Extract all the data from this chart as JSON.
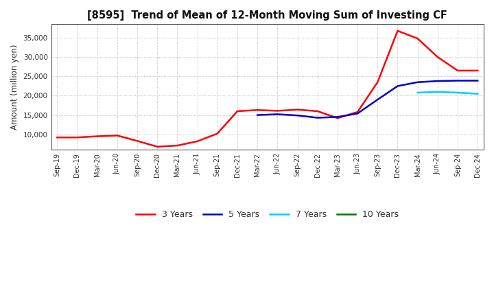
{
  "title": "[8595]  Trend of Mean of 12-Month Moving Sum of Investing CF",
  "ylabel": "Amount (million yen)",
  "background_color": "#ffffff",
  "grid_color": "#888888",
  "ylim": [
    6000,
    38500
  ],
  "yticks": [
    10000,
    15000,
    20000,
    25000,
    30000,
    35000
  ],
  "x_labels": [
    "Sep-19",
    "Dec-19",
    "Mar-20",
    "Jun-20",
    "Sep-20",
    "Dec-20",
    "Mar-21",
    "Jun-21",
    "Sep-21",
    "Dec-21",
    "Mar-22",
    "Jun-22",
    "Sep-22",
    "Dec-22",
    "Mar-23",
    "Jun-23",
    "Sep-23",
    "Dec-23",
    "Mar-24",
    "Jun-24",
    "Sep-24",
    "Dec-24"
  ],
  "series": {
    "3 Years": {
      "color": "#ff0000",
      "data_x": [
        0,
        1,
        2,
        3,
        4,
        5,
        6,
        7,
        8,
        9,
        10,
        11,
        12,
        13,
        14,
        15,
        16,
        17,
        18,
        19,
        20,
        21
      ],
      "data_y": [
        9200,
        9200,
        9500,
        9700,
        8300,
        6800,
        7100,
        8200,
        10200,
        16000,
        16300,
        16100,
        16400,
        16000,
        14200,
        15800,
        23500,
        36800,
        34800,
        30000,
        26500,
        26500
      ]
    },
    "5 Years": {
      "color": "#0000cc",
      "data_x": [
        10,
        11,
        12,
        13,
        14,
        15,
        16,
        17,
        18,
        19,
        20,
        21
      ],
      "data_y": [
        15000,
        15200,
        14900,
        14300,
        14500,
        15400,
        19000,
        22500,
        23500,
        23800,
        23900,
        23900
      ]
    },
    "7 Years": {
      "color": "#00ccff",
      "data_x": [
        18,
        19,
        20,
        21
      ],
      "data_y": [
        20800,
        21000,
        20800,
        20500
      ]
    },
    "10 Years": {
      "color": "#007700",
      "data_x": [],
      "data_y": []
    }
  },
  "legend_labels": [
    "3 Years",
    "5 Years",
    "7 Years",
    "10 Years"
  ],
  "legend_colors": [
    "#ff0000",
    "#0000cc",
    "#00ccff",
    "#007700"
  ]
}
